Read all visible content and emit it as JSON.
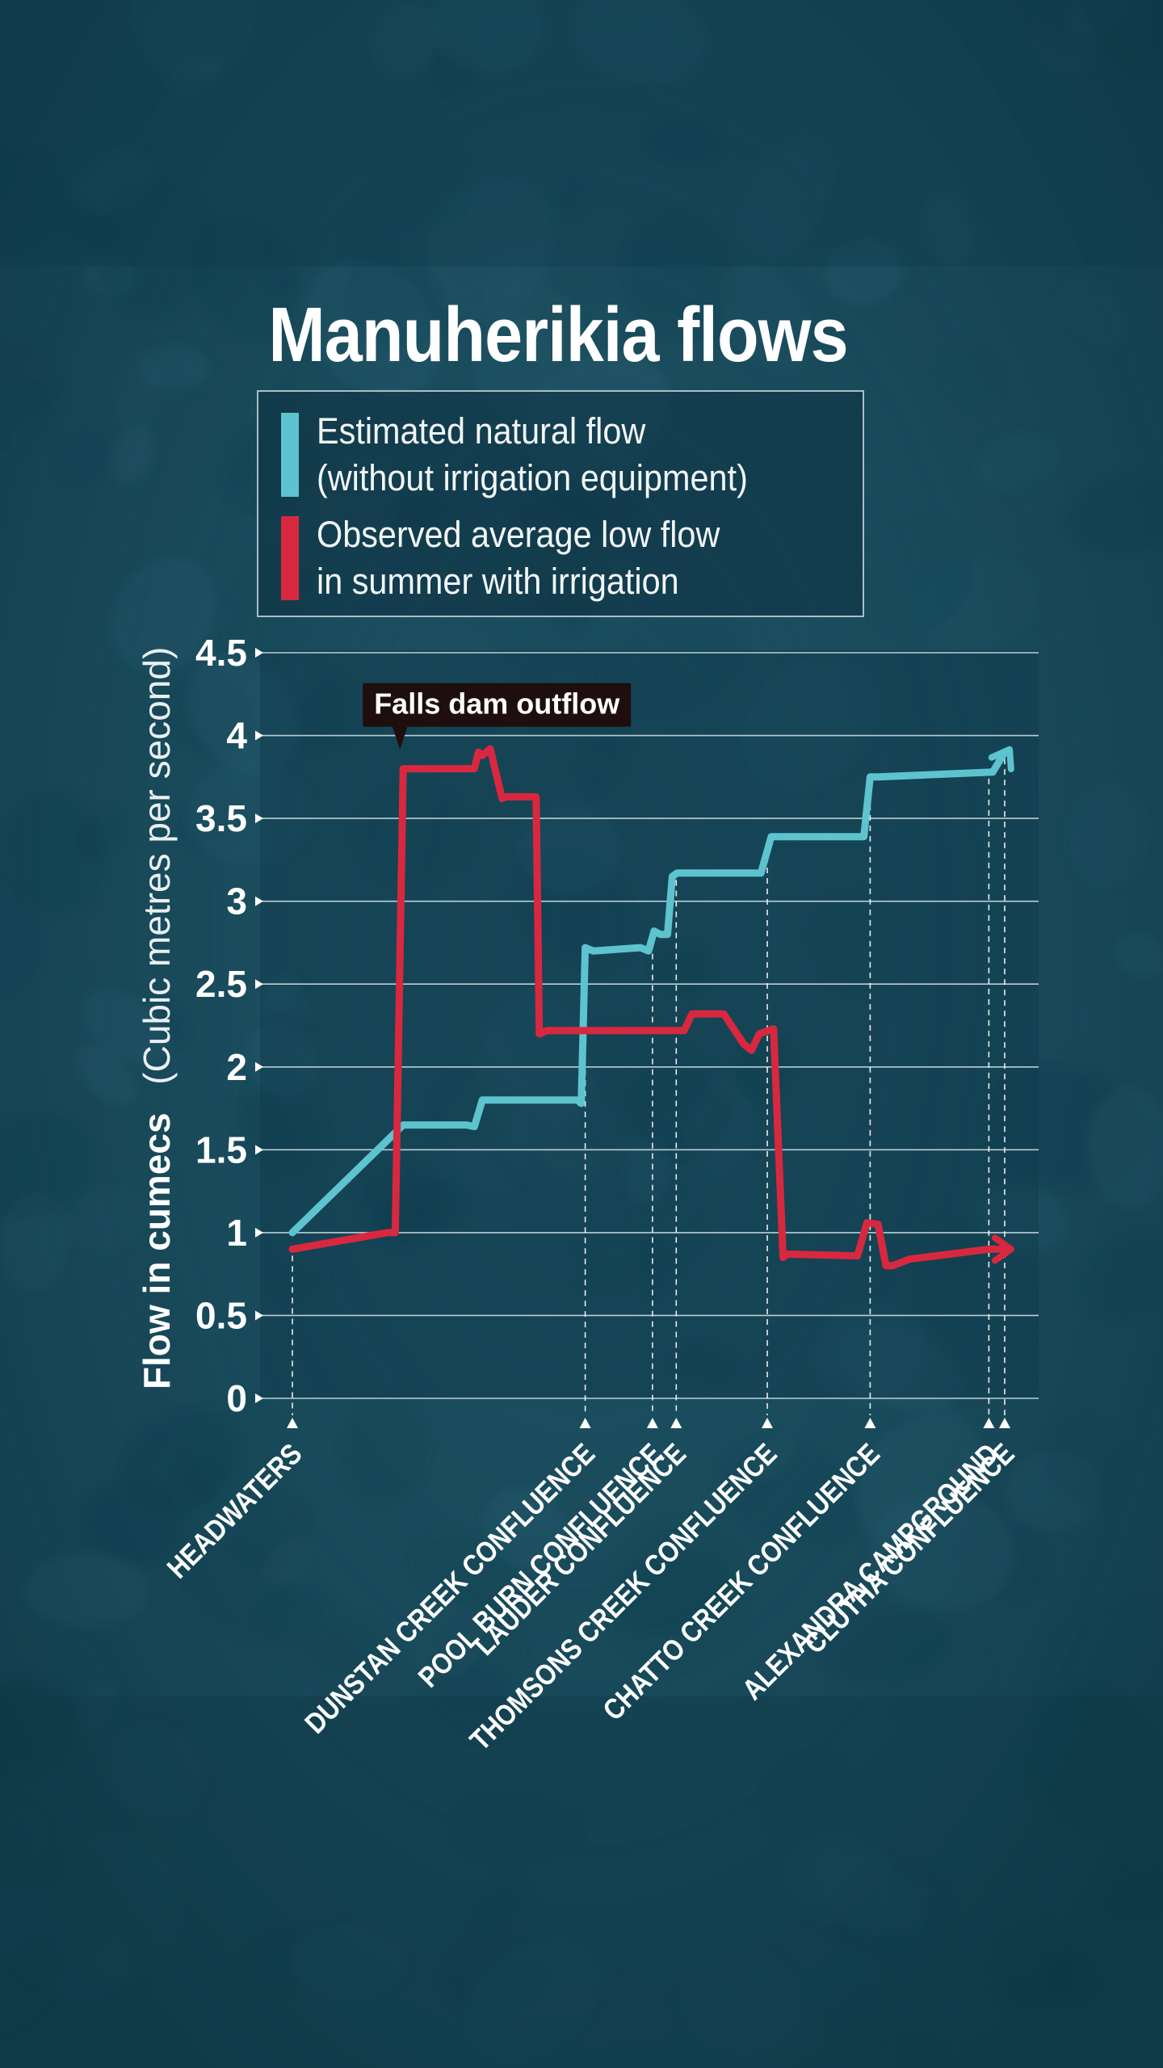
{
  "title": "Manuherikia flows",
  "legend": [
    {
      "color": "#5cc3cf",
      "line1": "Estimated natural flow",
      "line2": "(without irrigation equipment)"
    },
    {
      "color": "#d8283f",
      "line1": "Observed average low flow",
      "line2": "in summer with irrigation"
    }
  ],
  "chart_data": {
    "type": "line",
    "title": "Manuherikia flows",
    "ylabel_bold": "Flow in cumecs",
    "ylabel_light": "(Cubic metres per second)",
    "xlabel": "",
    "ylim": [
      0,
      4.5
    ],
    "yticks": [
      0,
      0.5,
      1,
      1.5,
      2,
      2.5,
      3,
      3.5,
      4,
      4.5
    ],
    "ytick_labels": [
      "0",
      "0.5",
      "1",
      "1.5",
      "2",
      "2.5",
      "3",
      "3.5",
      "4",
      "4.5"
    ],
    "grid": true,
    "locations": [
      {
        "name": "HEADWATERS",
        "x": 0
      },
      {
        "name": "DUNSTAN CREEK CONFLUENCE",
        "x": 37
      },
      {
        "name": "POOL BURN CONFLUENCE",
        "x": 45.5
      },
      {
        "name": "LAUDER CONFLUENCE",
        "x": 48.5
      },
      {
        "name": "THOMSONS CREEK CONFLUENCE",
        "x": 60
      },
      {
        "name": "CHATTO CREEK CONFLUENCE",
        "x": 73
      },
      {
        "name": "ALEXANDRA CAMPGROUND",
        "x": 88
      },
      {
        "name": "CLUTHA CONFLUENCE",
        "x": 90
      }
    ],
    "series": [
      {
        "name": "Estimated natural flow",
        "color": "#5cc3cf",
        "x": [
          0,
          14,
          22,
          23,
          24,
          36,
          36.5,
          37,
          38,
          44,
          45,
          45.7,
          46.5,
          47.4,
          48,
          48.6,
          49.5,
          59.2,
          60.5,
          72.2,
          73,
          74,
          88.5,
          90
        ],
        "y": [
          1.0,
          1.65,
          1.65,
          1.64,
          1.8,
          1.8,
          1.78,
          2.72,
          2.7,
          2.72,
          2.7,
          2.82,
          2.8,
          2.8,
          3.15,
          3.17,
          3.17,
          3.17,
          3.39,
          3.39,
          3.75,
          3.75,
          3.78,
          3.9
        ]
      },
      {
        "name": "Observed average low flow",
        "color": "#d8283f",
        "x": [
          0,
          12,
          13,
          14,
          23,
          23.5,
          24,
          25,
          26.5,
          27,
          30.8,
          31.2,
          32.2,
          49.5,
          50.5,
          54.5,
          57,
          58,
          59,
          60.8,
          62,
          62.5,
          63.2,
          71.4,
          72.6,
          74,
          75,
          75.8,
          78,
          88,
          90
        ],
        "y": [
          0.9,
          1.0,
          1.0,
          3.8,
          3.8,
          3.9,
          3.88,
          3.92,
          3.62,
          3.63,
          3.63,
          2.2,
          2.22,
          2.22,
          2.32,
          2.32,
          2.14,
          2.1,
          2.2,
          2.23,
          0.85,
          0.87,
          0.87,
          0.86,
          1.06,
          1.05,
          0.8,
          0.8,
          0.84,
          0.9,
          0.9
        ]
      }
    ],
    "annotations": [
      {
        "text": "Falls dam outflow",
        "x": 14,
        "y": 3.8
      }
    ]
  }
}
